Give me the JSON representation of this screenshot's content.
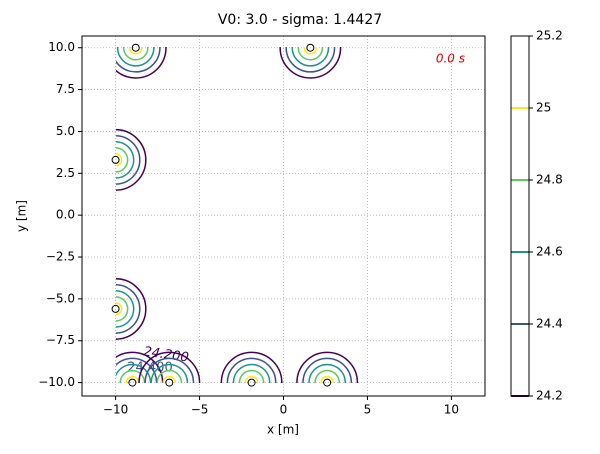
{
  "chart_data": {
    "type": "contour",
    "title": "V0: 3.0 - sigma: 1.4427",
    "annotation": "0.0 s",
    "annotation_color": "#e00000",
    "x_label": "x [m]",
    "y_label": "y [m]",
    "xlim": [
      -12,
      12
    ],
    "ylim": [
      -10.8,
      10.7
    ],
    "xticks": [
      {
        "value": -10,
        "label": "−10"
      },
      {
        "value": -5,
        "label": "−5"
      },
      0,
      5,
      10
    ],
    "yticks": [
      {
        "value": 10,
        "label": "10.0"
      },
      {
        "value": 7.5,
        "label": "7.5"
      },
      {
        "value": 5,
        "label": "5.0"
      },
      {
        "value": 2.5,
        "label": "2.5"
      },
      {
        "value": 0,
        "label": "0.0"
      },
      {
        "value": -2.5,
        "label": "−2.5"
      },
      {
        "value": -5,
        "label": "−5.0"
      },
      {
        "value": -7.5,
        "label": "−7.5"
      },
      {
        "value": -10,
        "label": "−10.0"
      }
    ],
    "grid": true,
    "points": {
      "x": [
        -8.8,
        1.6,
        -10,
        -10,
        -9,
        -6.8,
        -1.9,
        2.6
      ],
      "y": [
        10,
        10,
        3.3,
        -5.6,
        -10,
        -10,
        -10,
        -10
      ]
    },
    "levels": [
      24.2,
      24.4,
      24.6,
      24.8,
      25.0
    ],
    "level_colors": [
      "#440154",
      "#3b528b",
      "#21918c",
      "#5ec962",
      "#fde725"
    ],
    "contour_labels": [
      "24.200",
      "24.400"
    ],
    "colorbar_lim": [
      24.2,
      25.2
    ],
    "colorbar_ticks": [
      24.2,
      24.4,
      24.6,
      24.8,
      25.0,
      25.2
    ]
  }
}
